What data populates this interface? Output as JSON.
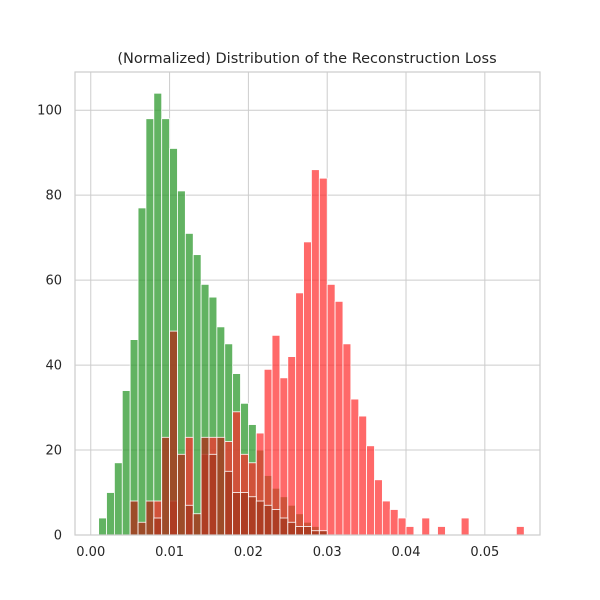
{
  "chart_data": {
    "type": "histogram",
    "title": "(Normalized) Distribution of the Reconstruction Loss",
    "xlabel": "",
    "ylabel": "",
    "xlim": [
      -0.002,
      0.057
    ],
    "ylim": [
      0,
      109
    ],
    "xticks": [
      0.0,
      0.01,
      0.02,
      0.03,
      0.04,
      0.05
    ],
    "xtick_labels": [
      "0.00",
      "0.01",
      "0.02",
      "0.03",
      "0.04",
      "0.05"
    ],
    "yticks": [
      0,
      20,
      40,
      60,
      80,
      100
    ],
    "ytick_labels": [
      "0",
      "20",
      "40",
      "60",
      "80",
      "100"
    ],
    "grid": true,
    "legend": "none",
    "series": [
      {
        "color": "#2e9a2e",
        "opacity": 0.75,
        "bin_width": 0.001,
        "x": [
          0.001,
          0.002,
          0.003,
          0.004,
          0.005,
          0.006,
          0.007,
          0.008,
          0.009,
          0.01,
          0.011,
          0.012,
          0.013,
          0.014,
          0.015,
          0.016,
          0.017,
          0.018,
          0.019,
          0.02,
          0.021,
          0.022,
          0.023,
          0.024,
          0.025,
          0.026,
          0.027,
          0.028,
          0.029
        ],
        "values": [
          4,
          10,
          17,
          34,
          46,
          77,
          98,
          104,
          98,
          91,
          81,
          71,
          66,
          59,
          56,
          49,
          45,
          38,
          31,
          26,
          20,
          14,
          11,
          9,
          7,
          5,
          3,
          2,
          1
        ]
      },
      {
        "color": "#ff2a2a",
        "opacity": 0.7,
        "bin_width": 0.001,
        "x": [
          0.008,
          0.01,
          0.012,
          0.014,
          0.015,
          0.017,
          0.018,
          0.019,
          0.02,
          0.021,
          0.022,
          0.023,
          0.024,
          0.025,
          0.026,
          0.027,
          0.028,
          0.029,
          0.03,
          0.031,
          0.032,
          0.033,
          0.034,
          0.035,
          0.036,
          0.037,
          0.038,
          0.039,
          0.04,
          0.042,
          0.044,
          0.047,
          0.054
        ],
        "values": [
          8,
          8,
          23,
          19,
          23,
          22,
          29,
          19,
          17,
          24,
          39,
          47,
          37,
          42,
          57,
          69,
          86,
          84,
          59,
          55,
          45,
          32,
          28,
          21,
          13,
          8,
          6,
          4,
          2,
          4,
          2,
          4,
          2
        ]
      },
      {
        "color": "#a83a20",
        "opacity": 0.85,
        "bin_width": 0.001,
        "x": [
          0.005,
          0.006,
          0.007,
          0.008,
          0.009,
          0.01,
          0.011,
          0.012,
          0.013,
          0.014,
          0.015,
          0.016,
          0.017,
          0.018,
          0.019,
          0.02,
          0.021,
          0.022,
          0.023,
          0.024,
          0.025,
          0.026,
          0.027,
          0.028,
          0.029
        ],
        "values": [
          8,
          3,
          8,
          4,
          23,
          48,
          19,
          7,
          5,
          23,
          19,
          23,
          15,
          10,
          10,
          9,
          8,
          7,
          6,
          4,
          3,
          2,
          2,
          1,
          1
        ]
      }
    ]
  }
}
